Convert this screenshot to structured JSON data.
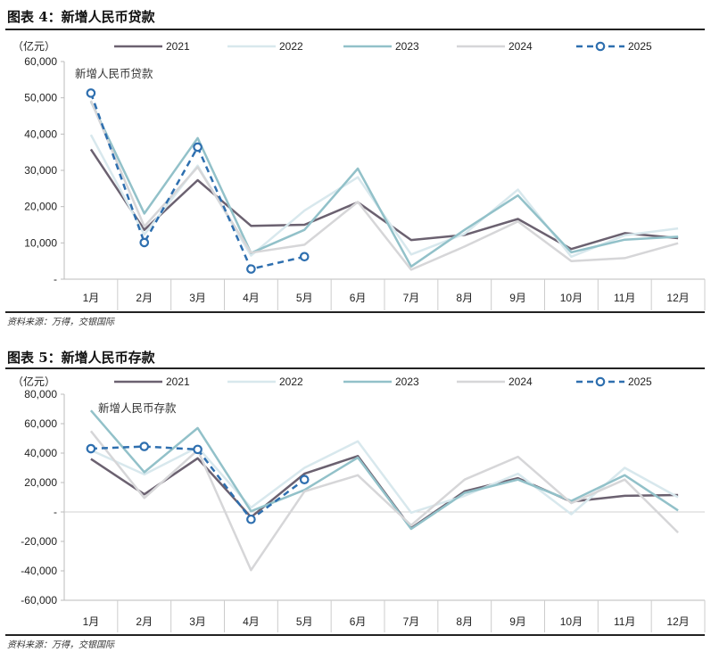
{
  "figures": [
    {
      "title": "图表 4：新增人民币贷款",
      "source": "资料来源：万得，交银国际"
    },
    {
      "title": "图表 5：新增人民币存款",
      "source": "资料来源：万得，交银国际"
    }
  ],
  "chart_data": [
    {
      "type": "line",
      "title": "新增人民币贷款",
      "ylabel": "（亿元）",
      "categories": [
        "1月",
        "2月",
        "3月",
        "4月",
        "5月",
        "6月",
        "7月",
        "8月",
        "9月",
        "10月",
        "11月",
        "12月"
      ],
      "ylim": [
        0,
        60000
      ],
      "yticks": [
        0,
        10000,
        20000,
        30000,
        40000,
        50000,
        60000
      ],
      "ytick_labels": [
        "-",
        "10,000",
        "20,000",
        "30,000",
        "40,000",
        "50,000",
        "60,000"
      ],
      "series": [
        {
          "name": "2021",
          "color": "#6b6170",
          "dashed": false,
          "markers": false,
          "values": [
            35800,
            13600,
            27300,
            14700,
            15000,
            21200,
            10800,
            12200,
            16600,
            8300,
            12700,
            11300
          ]
        },
        {
          "name": "2022",
          "color": "#d8e8ed",
          "dashed": false,
          "markers": false,
          "values": [
            39800,
            12300,
            31300,
            6500,
            18900,
            28100,
            6800,
            12500,
            24700,
            6200,
            12100,
            14000
          ]
        },
        {
          "name": "2023",
          "color": "#92c1c9",
          "dashed": false,
          "markers": false,
          "values": [
            49000,
            18100,
            38900,
            7200,
            13600,
            30500,
            3500,
            13600,
            23100,
            7400,
            10900,
            11700
          ]
        },
        {
          "name": "2024",
          "color": "#d6d6d8",
          "dashed": false,
          "markers": false,
          "values": [
            49200,
            14500,
            30900,
            7300,
            9500,
            21300,
            2600,
            9000,
            15900,
            5000,
            5800,
            9900
          ]
        },
        {
          "name": "2025",
          "color": "#2e6faf",
          "dashed": true,
          "markers": true,
          "values": [
            51300,
            10100,
            36400,
            2800,
            6200,
            null,
            null,
            null,
            null,
            null,
            null,
            null
          ]
        }
      ]
    },
    {
      "type": "line",
      "title": "新增人民币存款",
      "ylabel": "（亿元）",
      "categories": [
        "1月",
        "2月",
        "3月",
        "4月",
        "5月",
        "6月",
        "7月",
        "8月",
        "9月",
        "10月",
        "11月",
        "12月"
      ],
      "ylim": [
        -60000,
        80000
      ],
      "yticks": [
        -60000,
        -40000,
        -20000,
        0,
        20000,
        40000,
        60000,
        80000
      ],
      "ytick_labels": [
        "-60,000",
        "-40,000",
        "-20,000",
        "-",
        "20,000",
        "40,000",
        "60,000",
        "80,000"
      ],
      "series": [
        {
          "name": "2021",
          "color": "#6b6170",
          "dashed": false,
          "markers": false,
          "values": [
            36000,
            12000,
            36500,
            -3500,
            26000,
            38000,
            -11000,
            14000,
            23000,
            7000,
            11000,
            11500
          ]
        },
        {
          "name": "2022",
          "color": "#d8e8ed",
          "dashed": false,
          "markers": false,
          "values": [
            42000,
            25500,
            44000,
            3000,
            30000,
            48000,
            -500,
            11000,
            26000,
            -1500,
            30000,
            10000
          ]
        },
        {
          "name": "2023",
          "color": "#92c1c9",
          "dashed": false,
          "markers": false,
          "values": [
            69000,
            27000,
            57000,
            500,
            15000,
            37000,
            -11500,
            13000,
            22000,
            7500,
            25000,
            1000
          ]
        },
        {
          "name": "2024",
          "color": "#d6d6d8",
          "dashed": false,
          "markers": false,
          "values": [
            55000,
            9500,
            42000,
            -39500,
            14000,
            25000,
            -9000,
            22000,
            37500,
            6000,
            22000,
            -14000
          ]
        },
        {
          "name": "2025",
          "color": "#2e6faf",
          "dashed": true,
          "markers": true,
          "values": [
            43000,
            44500,
            42500,
            -5000,
            22000,
            null,
            null,
            null,
            null,
            null,
            null,
            null
          ]
        }
      ]
    }
  ]
}
